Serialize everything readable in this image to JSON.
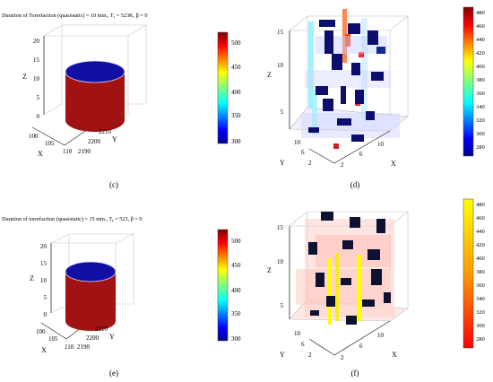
{
  "panels": {
    "top_left": {
      "title_prefix": "Duration of Torrefaction (quasistatic) = 10 min., T",
      "title_sub": "f",
      "title_suffix": " = 523K, β = 0",
      "axes": {
        "x": "X",
        "y": "Y",
        "z": "Z"
      },
      "ticks": {
        "x": [
          "100",
          "105",
          "110"
        ],
        "y": [
          "2190",
          "2200",
          "2210"
        ],
        "z": [
          "0",
          "5",
          "10",
          "15",
          "20"
        ]
      },
      "cylinder_side_color": "#a11212",
      "cylinder_top_color": "#1010a6",
      "colorbar": {
        "ticks": [
          "300",
          "350",
          "400",
          "450",
          "500"
        ]
      }
    },
    "top_right": {
      "axes": {
        "x": "X",
        "y": "Y",
        "z": "Z"
      },
      "ticks": {
        "x": [
          "2",
          "6",
          "10"
        ],
        "y": [
          "2",
          "6",
          "10"
        ],
        "z": [
          "5",
          "10",
          "15"
        ]
      },
      "colorbar": {
        "ticks": [
          "280",
          "300",
          "320",
          "340",
          "360",
          "380",
          "400",
          "420",
          "440",
          "460",
          "480"
        ]
      }
    },
    "bottom_left": {
      "title_prefix": "Duration of torrefaction (quasistatic) = 15 min., T",
      "title_sub": "f",
      "title_suffix": " = 523, β = 0",
      "axes": {
        "x": "X",
        "y": "Y",
        "z": "Z"
      },
      "ticks": {
        "x": [
          "100",
          "105",
          "110"
        ],
        "y": [
          "2190",
          "2200",
          "2210"
        ],
        "z": [
          "0",
          "5",
          "10",
          "15",
          "20"
        ]
      },
      "cylinder_side_color": "#a11212",
      "cylinder_top_color": "#1010a6",
      "colorbar": {
        "ticks": [
          "300",
          "350",
          "400",
          "450",
          "500"
        ]
      }
    },
    "bottom_right": {
      "axes": {
        "x": "X",
        "y": "Y",
        "z": "Z"
      },
      "ticks": {
        "x": [
          "2",
          "6",
          "10"
        ],
        "y": [
          "2",
          "6",
          "10"
        ],
        "z": [
          "5",
          "10",
          "15"
        ]
      },
      "colorbar": {
        "ticks": [
          "280",
          "300",
          "320",
          "340",
          "360",
          "380",
          "400",
          "420",
          "440",
          "460",
          "480"
        ]
      }
    }
  },
  "captions": {
    "c": "(c)",
    "d": "(d)",
    "e": "(e)",
    "f": "(f)"
  },
  "chart_data": [
    {
      "type": "heatmap",
      "panel": "top_left",
      "shape": "cylinder",
      "colormap": "jet",
      "clim": [
        300,
        520
      ]
    },
    {
      "type": "heatmap",
      "panel": "top_right",
      "shape": "voxel",
      "colormap": "jet",
      "clim": [
        270,
        490
      ],
      "xlim": [
        0,
        12
      ],
      "ylim": [
        0,
        12
      ],
      "zlim": [
        0,
        15
      ]
    },
    {
      "type": "heatmap",
      "panel": "bottom_left",
      "shape": "cylinder",
      "colormap": "jet",
      "clim": [
        300,
        520
      ]
    },
    {
      "type": "heatmap",
      "panel": "bottom_right",
      "shape": "voxel",
      "colormap": "hot",
      "clim": [
        270,
        490
      ],
      "xlim": [
        0,
        12
      ],
      "ylim": [
        0,
        12
      ],
      "zlim": [
        0,
        15
      ]
    }
  ]
}
